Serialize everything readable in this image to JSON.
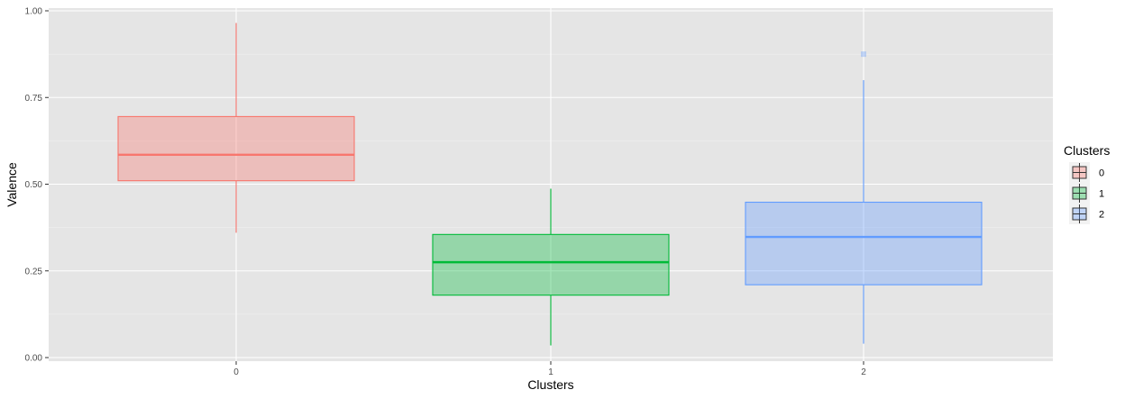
{
  "chart_data": {
    "type": "boxplot",
    "title": "",
    "xlabel": "Clusters",
    "ylabel": "Valence",
    "categories": [
      "0",
      "1",
      "2"
    ],
    "ylim": [
      0,
      1
    ],
    "y_ticks": [
      "0.00",
      "0.25",
      "0.50",
      "0.75",
      "1.00"
    ],
    "y_tick_values": [
      0,
      0.25,
      0.5,
      0.75,
      1.0
    ],
    "grid": true,
    "legend": {
      "title": "Clusters",
      "position": "right",
      "entries": [
        "0",
        "1",
        "2"
      ]
    },
    "series": [
      {
        "name": "0",
        "color": "#F8766D",
        "min": 0.36,
        "q1": 0.51,
        "median": 0.585,
        "q3": 0.695,
        "max": 0.965,
        "outliers": []
      },
      {
        "name": "1",
        "color": "#00BA38",
        "min": 0.035,
        "q1": 0.18,
        "median": 0.275,
        "q3": 0.355,
        "max": 0.487,
        "outliers": []
      },
      {
        "name": "2",
        "color": "#619CFF",
        "min": 0.04,
        "q1": 0.21,
        "median": 0.348,
        "q3": 0.448,
        "max": 0.8,
        "outliers": [
          0.875
        ]
      }
    ]
  }
}
